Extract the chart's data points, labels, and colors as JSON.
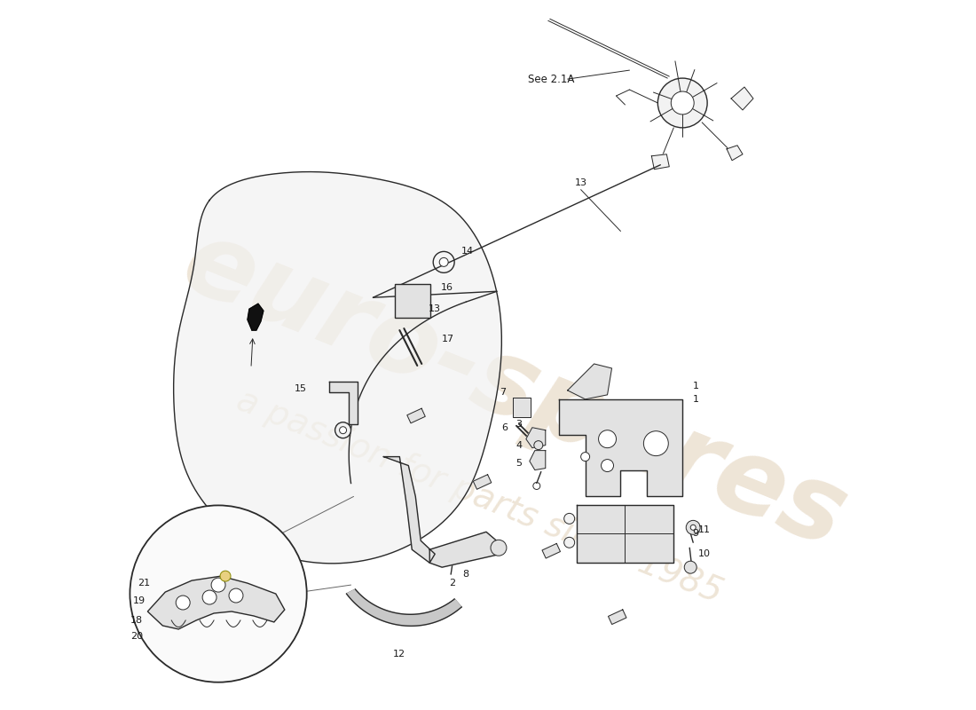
{
  "background_color": "#ffffff",
  "watermark_text1": "euro-spares",
  "watermark_text2": "a passion for parts since 1985",
  "see_label": "See 2.1A",
  "line_color": "#2a2a2a",
  "label_color": "#1a1a1a",
  "fill_light": "#f2f2f2",
  "fill_mid": "#e2e2e2",
  "fill_dark": "#c8c8c8",
  "wm_color": "#c8a87a",
  "wm_alpha": 0.3
}
